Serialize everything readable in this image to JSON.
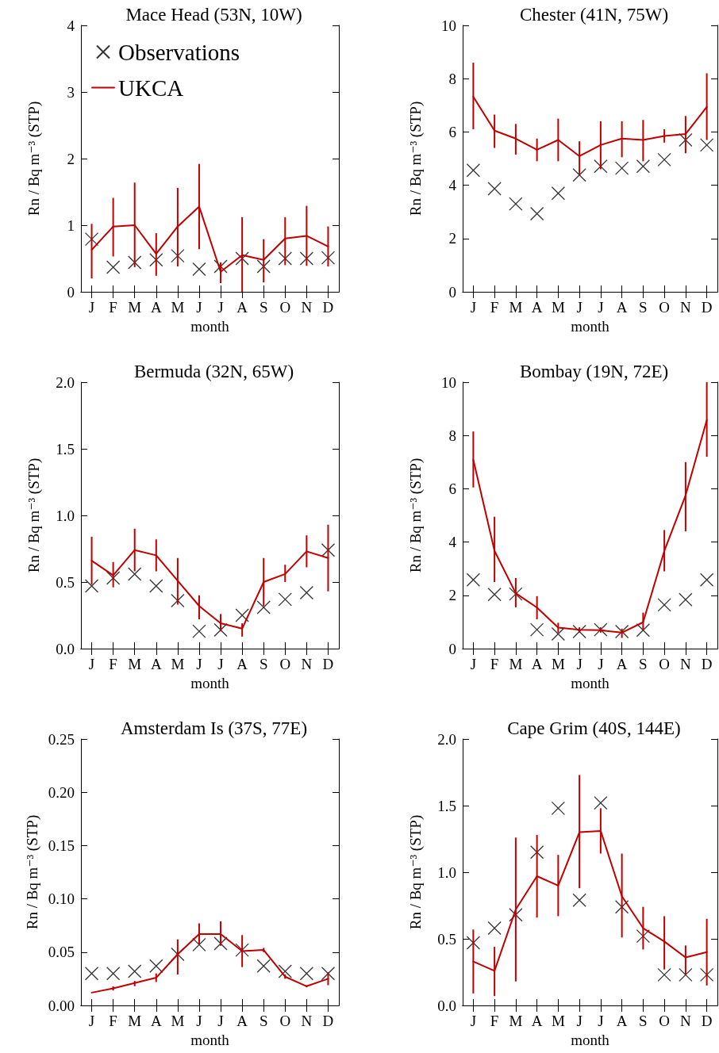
{
  "chart_data": [
    {
      "type": "line",
      "title": "Mace Head (53N, 10W)",
      "xlabel": "month",
      "ylabel": "Rn / Bq m⁻³ (STP)",
      "categories": [
        "J",
        "F",
        "M",
        "A",
        "M",
        "J",
        "J",
        "A",
        "S",
        "O",
        "N",
        "D"
      ],
      "ylim": [
        0,
        4
      ],
      "yticks": [
        0,
        1,
        2,
        3,
        4
      ],
      "legend": "top left",
      "grid": false,
      "series": [
        {
          "name": "Observations",
          "type": "scatter",
          "marker": "cross",
          "color": "#000000",
          "values": [
            0.79,
            0.37,
            0.44,
            0.48,
            0.54,
            0.34,
            0.38,
            0.5,
            0.38,
            0.5,
            0.5,
            0.51
          ]
        },
        {
          "name": "UKCA",
          "type": "line",
          "marker": "none",
          "color": "#c00000",
          "values": [
            0.63,
            0.98,
            1.0,
            0.57,
            0.98,
            1.28,
            0.3,
            0.55,
            0.48,
            0.8,
            0.84,
            0.68
          ],
          "errors": [
            [
              0.2,
              1.02
            ],
            [
              0.53,
              1.41
            ],
            [
              0.37,
              1.64
            ],
            [
              0.24,
              0.88
            ],
            [
              0.38,
              1.56
            ],
            [
              0.64,
              1.92
            ],
            [
              0.13,
              0.44
            ],
            [
              0.0,
              1.12
            ],
            [
              0.14,
              0.79
            ],
            [
              0.4,
              1.12
            ],
            [
              0.39,
              1.29
            ],
            [
              0.38,
              0.98
            ]
          ]
        }
      ]
    },
    {
      "type": "line",
      "title": "Chester (41N, 75W)",
      "xlabel": "month",
      "ylabel": "Rn / Bq m⁻³ (STP)",
      "categories": [
        "J",
        "F",
        "M",
        "A",
        "M",
        "J",
        "J",
        "A",
        "S",
        "O",
        "N",
        "D"
      ],
      "ylim": [
        0,
        10
      ],
      "yticks": [
        0,
        2,
        4,
        6,
        8,
        10
      ],
      "legend": false,
      "grid": false,
      "series": [
        {
          "type": "scatter",
          "marker": "cross",
          "color": "#000000",
          "values": [
            4.56,
            3.87,
            3.3,
            2.93,
            3.7,
            4.38,
            4.71,
            4.64,
            4.71,
            4.96,
            5.7,
            5.51
          ]
        },
        {
          "type": "line",
          "marker": "none",
          "color": "#c00000",
          "values": [
            7.32,
            6.05,
            5.75,
            5.33,
            5.7,
            5.09,
            5.51,
            5.75,
            5.7,
            5.85,
            5.92,
            6.94
          ],
          "errors": [
            [
              6.1,
              8.6
            ],
            [
              5.4,
              6.65
            ],
            [
              5.15,
              6.3
            ],
            [
              4.9,
              5.75
            ],
            [
              4.9,
              6.5
            ],
            [
              4.4,
              5.65
            ],
            [
              4.6,
              6.4
            ],
            [
              5.05,
              6.4
            ],
            [
              4.9,
              6.45
            ],
            [
              5.6,
              6.1
            ],
            [
              5.2,
              6.6
            ],
            [
              5.7,
              8.2
            ]
          ]
        }
      ]
    },
    {
      "type": "line",
      "title": "Bermuda (32N, 65W)",
      "xlabel": "month",
      "ylabel": "Rn / Bq m⁻³ (STP)",
      "categories": [
        "J",
        "F",
        "M",
        "A",
        "M",
        "J",
        "J",
        "A",
        "S",
        "O",
        "N",
        "D"
      ],
      "ylim": [
        0,
        2
      ],
      "yticks": [
        {
          "value": 0,
          "label": "0.0"
        },
        0.5,
        {
          "value": 1,
          "label": "1.0"
        },
        1.5,
        {
          "value": 2,
          "label": "2.0"
        }
      ],
      "legend": false,
      "grid": false,
      "series": [
        {
          "type": "scatter",
          "marker": "cross",
          "color": "#000000",
          "values": [
            0.47,
            0.53,
            0.56,
            0.47,
            0.36,
            0.13,
            0.14,
            0.25,
            0.31,
            0.37,
            0.42,
            0.74
          ]
        },
        {
          "type": "line",
          "marker": "none",
          "color": "#c00000",
          "values": [
            0.66,
            0.55,
            0.74,
            0.7,
            0.51,
            0.32,
            0.19,
            0.15,
            0.5,
            0.56,
            0.73,
            0.68
          ],
          "errors": [
            [
              0.48,
              0.84
            ],
            [
              0.46,
              0.65
            ],
            [
              0.58,
              0.9
            ],
            [
              0.58,
              0.82
            ],
            [
              0.33,
              0.68
            ],
            [
              0.22,
              0.4
            ],
            [
              0.13,
              0.26
            ],
            [
              0.09,
              0.19
            ],
            [
              0.32,
              0.68
            ],
            [
              0.5,
              0.63
            ],
            [
              0.61,
              0.85
            ],
            [
              0.43,
              0.93
            ]
          ]
        }
      ]
    },
    {
      "type": "line",
      "title": "Bombay (19N, 72E)",
      "xlabel": "month",
      "ylabel": "Rn / Bq m⁻³ (STP)",
      "categories": [
        "J",
        "F",
        "M",
        "A",
        "M",
        "J",
        "J",
        "A",
        "S",
        "O",
        "N",
        "D"
      ],
      "ylim": [
        0,
        10
      ],
      "yticks": [
        0,
        2,
        4,
        6,
        8,
        10
      ],
      "legend": false,
      "grid": false,
      "series": [
        {
          "type": "scatter",
          "marker": "cross",
          "color": "#000000",
          "values": [
            2.58,
            2.03,
            2.05,
            0.71,
            0.55,
            0.64,
            0.71,
            0.64,
            0.69,
            1.64,
            1.84,
            2.58
          ]
        },
        {
          "type": "line",
          "marker": "none",
          "color": "#c00000",
          "values": [
            7.09,
            3.67,
            2.08,
            1.54,
            0.79,
            0.71,
            0.69,
            0.6,
            0.99,
            3.67,
            5.75,
            8.58
          ],
          "errors": [
            [
              6.05,
              8.15
            ],
            [
              2.5,
              4.95
            ],
            [
              1.55,
              2.65
            ],
            [
              1.1,
              1.97
            ],
            [
              0.6,
              0.97
            ],
            [
              0.6,
              0.8
            ],
            [
              0.6,
              0.8
            ],
            [
              0.4,
              0.75
            ],
            [
              0.7,
              1.35
            ],
            [
              2.9,
              4.45
            ],
            [
              4.4,
              7.0
            ],
            [
              7.2,
              10.0
            ]
          ]
        }
      ]
    },
    {
      "type": "line",
      "title": "Amsterdam Is (37S, 77E)",
      "xlabel": "month",
      "ylabel": "Rn / Bq m⁻³ (STP)",
      "categories": [
        "J",
        "F",
        "M",
        "A",
        "M",
        "J",
        "J",
        "A",
        "S",
        "O",
        "N",
        "D"
      ],
      "ylim": [
        0,
        0.25
      ],
      "yticks": [
        {
          "value": 0,
          "label": "0.00"
        },
        0.05,
        {
          "value": 0.1,
          "label": "0.10"
        },
        0.15,
        {
          "value": 0.2,
          "label": "0.20"
        },
        0.25
      ],
      "legend": false,
      "grid": false,
      "series": [
        {
          "type": "scatter",
          "marker": "cross",
          "color": "#000000",
          "values": [
            0.03,
            0.03,
            0.032,
            0.037,
            0.048,
            0.057,
            0.058,
            0.052,
            0.037,
            0.032,
            0.03,
            0.03
          ]
        },
        {
          "type": "line",
          "marker": "none",
          "color": "#c00000",
          "values": [
            0.012,
            0.016,
            0.021,
            0.026,
            0.048,
            0.067,
            0.067,
            0.051,
            0.052,
            0.027,
            0.018,
            0.025
          ],
          "errors": [
            null,
            [
              0.014,
              0.018
            ],
            [
              0.018,
              0.023
            ],
            [
              0.022,
              0.03
            ],
            [
              0.029,
              0.062
            ],
            [
              0.057,
              0.077
            ],
            [
              0.056,
              0.079
            ],
            [
              0.036,
              0.066
            ],
            [
              0.05,
              0.054
            ],
            [
              0.025,
              0.029
            ],
            [
              0.017,
              0.019
            ],
            [
              0.019,
              0.031
            ]
          ]
        }
      ]
    },
    {
      "type": "line",
      "title": "Cape Grim (40S, 144E)",
      "xlabel": "month",
      "ylabel": "Rn / Bq m⁻³ (STP)",
      "categories": [
        "J",
        "F",
        "M",
        "A",
        "M",
        "J",
        "J",
        "A",
        "S",
        "O",
        "N",
        "D"
      ],
      "ylim": [
        0,
        2
      ],
      "yticks": [
        {
          "value": 0,
          "label": "0.0"
        },
        0.5,
        {
          "value": 1,
          "label": "1.0"
        },
        1.5,
        {
          "value": 2,
          "label": "2.0"
        }
      ],
      "legend": false,
      "grid": false,
      "series": [
        {
          "type": "scatter",
          "marker": "cross",
          "color": "#000000",
          "values": [
            0.47,
            0.58,
            0.68,
            1.15,
            1.48,
            0.79,
            1.52,
            0.74,
            0.52,
            0.23,
            0.23,
            0.23
          ]
        },
        {
          "type": "line",
          "marker": "none",
          "color": "#c00000",
          "values": [
            0.33,
            0.26,
            0.72,
            0.97,
            0.9,
            1.3,
            1.31,
            0.82,
            0.58,
            0.48,
            0.36,
            0.4
          ],
          "errors": [
            [
              0.09,
              0.57
            ],
            [
              0.07,
              0.44
            ],
            [
              0.18,
              1.26
            ],
            [
              0.66,
              1.28
            ],
            [
              0.67,
              1.13
            ],
            [
              0.88,
              1.73
            ],
            [
              1.14,
              1.48
            ],
            [
              0.51,
              1.14
            ],
            [
              0.42,
              0.74
            ],
            [
              0.27,
              0.67
            ],
            [
              0.23,
              0.45
            ],
            [
              0.15,
              0.65
            ]
          ]
        }
      ]
    }
  ]
}
